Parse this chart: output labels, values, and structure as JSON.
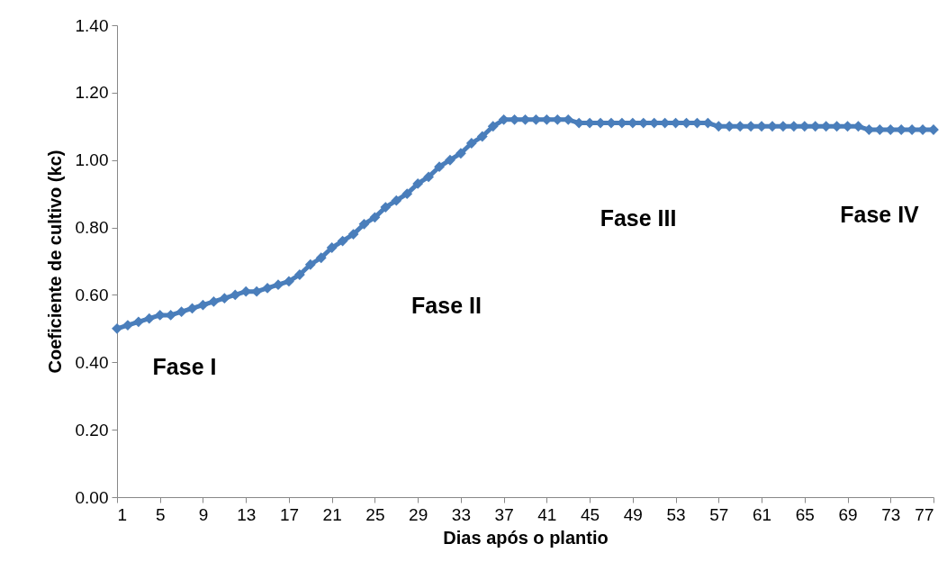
{
  "chart_data": {
    "type": "line",
    "xlabel": "Dias após o plantio",
    "ylabel": "Coeficiente de cultivo (kc)",
    "x": [
      1,
      2,
      3,
      4,
      5,
      6,
      7,
      8,
      9,
      10,
      11,
      12,
      13,
      14,
      15,
      16,
      17,
      18,
      19,
      20,
      21,
      22,
      23,
      24,
      25,
      26,
      27,
      28,
      29,
      30,
      31,
      32,
      33,
      34,
      35,
      36,
      37,
      38,
      39,
      40,
      41,
      42,
      43,
      44,
      45,
      46,
      47,
      48,
      49,
      50,
      51,
      52,
      53,
      54,
      55,
      56,
      57,
      58,
      59,
      60,
      61,
      62,
      63,
      64,
      65,
      66,
      67,
      68,
      69,
      70,
      71,
      72,
      73,
      74,
      75,
      76,
      77
    ],
    "series": [
      {
        "color": "#4a7ebb",
        "values": [
          0.5,
          0.51,
          0.52,
          0.53,
          0.54,
          0.54,
          0.55,
          0.56,
          0.57,
          0.58,
          0.59,
          0.6,
          0.61,
          0.61,
          0.62,
          0.63,
          0.64,
          0.66,
          0.69,
          0.71,
          0.74,
          0.76,
          0.78,
          0.81,
          0.83,
          0.86,
          0.88,
          0.9,
          0.93,
          0.95,
          0.98,
          1.0,
          1.02,
          1.05,
          1.07,
          1.1,
          1.12,
          1.12,
          1.12,
          1.12,
          1.12,
          1.12,
          1.12,
          1.11,
          1.11,
          1.11,
          1.11,
          1.11,
          1.11,
          1.11,
          1.11,
          1.11,
          1.11,
          1.11,
          1.11,
          1.11,
          1.1,
          1.1,
          1.1,
          1.1,
          1.1,
          1.1,
          1.1,
          1.1,
          1.1,
          1.1,
          1.1,
          1.1,
          1.1,
          1.1,
          1.09,
          1.09,
          1.09,
          1.09,
          1.09,
          1.09,
          1.09
        ]
      }
    ],
    "xlim": [
      1,
      77
    ],
    "xticks": [
      1,
      5,
      9,
      13,
      17,
      21,
      25,
      29,
      33,
      37,
      41,
      45,
      49,
      53,
      57,
      61,
      65,
      69,
      73,
      77
    ],
    "ylim": [
      0,
      1.4
    ],
    "yticks": [
      {
        "value": 0,
        "label": "0.00"
      },
      {
        "value": 0.2,
        "label": "0.20"
      },
      {
        "value": 0.4,
        "label": "0.40"
      },
      {
        "value": 0.6,
        "label": "0.60"
      },
      {
        "value": 0.8,
        "label": "0.80"
      },
      {
        "value": 1.0,
        "label": "1.00"
      },
      {
        "value": 1.2,
        "label": "1.20"
      },
      {
        "value": 1.4,
        "label": "1.40"
      }
    ],
    "marker": "diamond",
    "grid": false,
    "annotations": [
      "Fase I",
      "Fase II",
      "Fase III",
      "Fase IV"
    ]
  }
}
